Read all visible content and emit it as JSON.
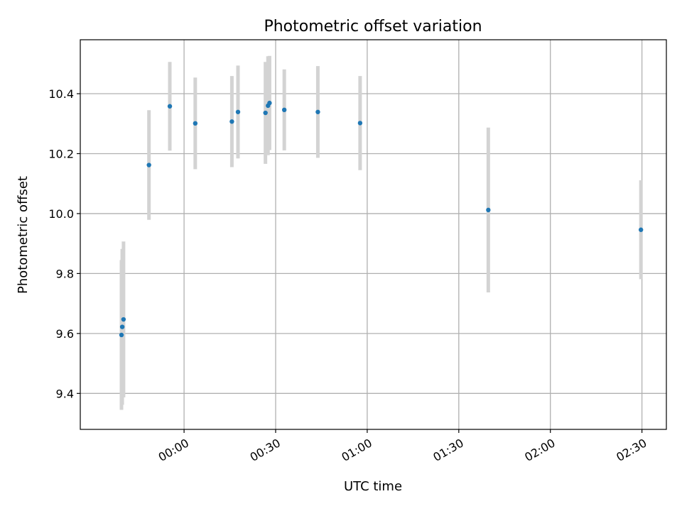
{
  "chart_data": {
    "type": "scatter",
    "title": "Photometric offset variation",
    "xlabel": "UTC time",
    "ylabel": "Photometric offset",
    "x_axis": {
      "kind": "time",
      "start": "23:26",
      "end": "02:38",
      "ticks": [
        "00:00",
        "00:30",
        "01:00",
        "01:30",
        "02:00",
        "02:30"
      ]
    },
    "y_axis": {
      "range": [
        9.28,
        10.58
      ],
      "ticks": [
        "9.4",
        "9.6",
        "9.8",
        "10.0",
        "10.2",
        "10.4"
      ]
    },
    "grid": true,
    "colors": {
      "point": "#1f77b4",
      "errorbar": "#d3d3d3",
      "grid": "#b0b0b0"
    },
    "points": [
      {
        "t": "23:39:30",
        "y": 9.595,
        "err": 0.25
      },
      {
        "t": "23:39:45",
        "y": 9.622,
        "err": 0.26
      },
      {
        "t": "23:40:10",
        "y": 9.647,
        "err": 0.26
      },
      {
        "t": "23:48:30",
        "y": 10.162,
        "err": 0.183
      },
      {
        "t": "23:55:20",
        "y": 10.358,
        "err": 0.148
      },
      {
        "t": "00:03:40",
        "y": 10.301,
        "err": 0.153
      },
      {
        "t": "00:15:40",
        "y": 10.307,
        "err": 0.152
      },
      {
        "t": "00:17:40",
        "y": 10.339,
        "err": 0.155
      },
      {
        "t": "00:26:40",
        "y": 10.336,
        "err": 0.17
      },
      {
        "t": "00:27:30",
        "y": 10.36,
        "err": 0.165
      },
      {
        "t": "00:28:00",
        "y": 10.369,
        "err": 0.157
      },
      {
        "t": "00:32:50",
        "y": 10.346,
        "err": 0.135
      },
      {
        "t": "00:43:50",
        "y": 10.339,
        "err": 0.153
      },
      {
        "t": "00:57:40",
        "y": 10.302,
        "err": 0.157
      },
      {
        "t": "01:39:40",
        "y": 10.012,
        "err": 0.275
      },
      {
        "t": "02:29:40",
        "y": 9.946,
        "err": 0.165
      }
    ]
  }
}
